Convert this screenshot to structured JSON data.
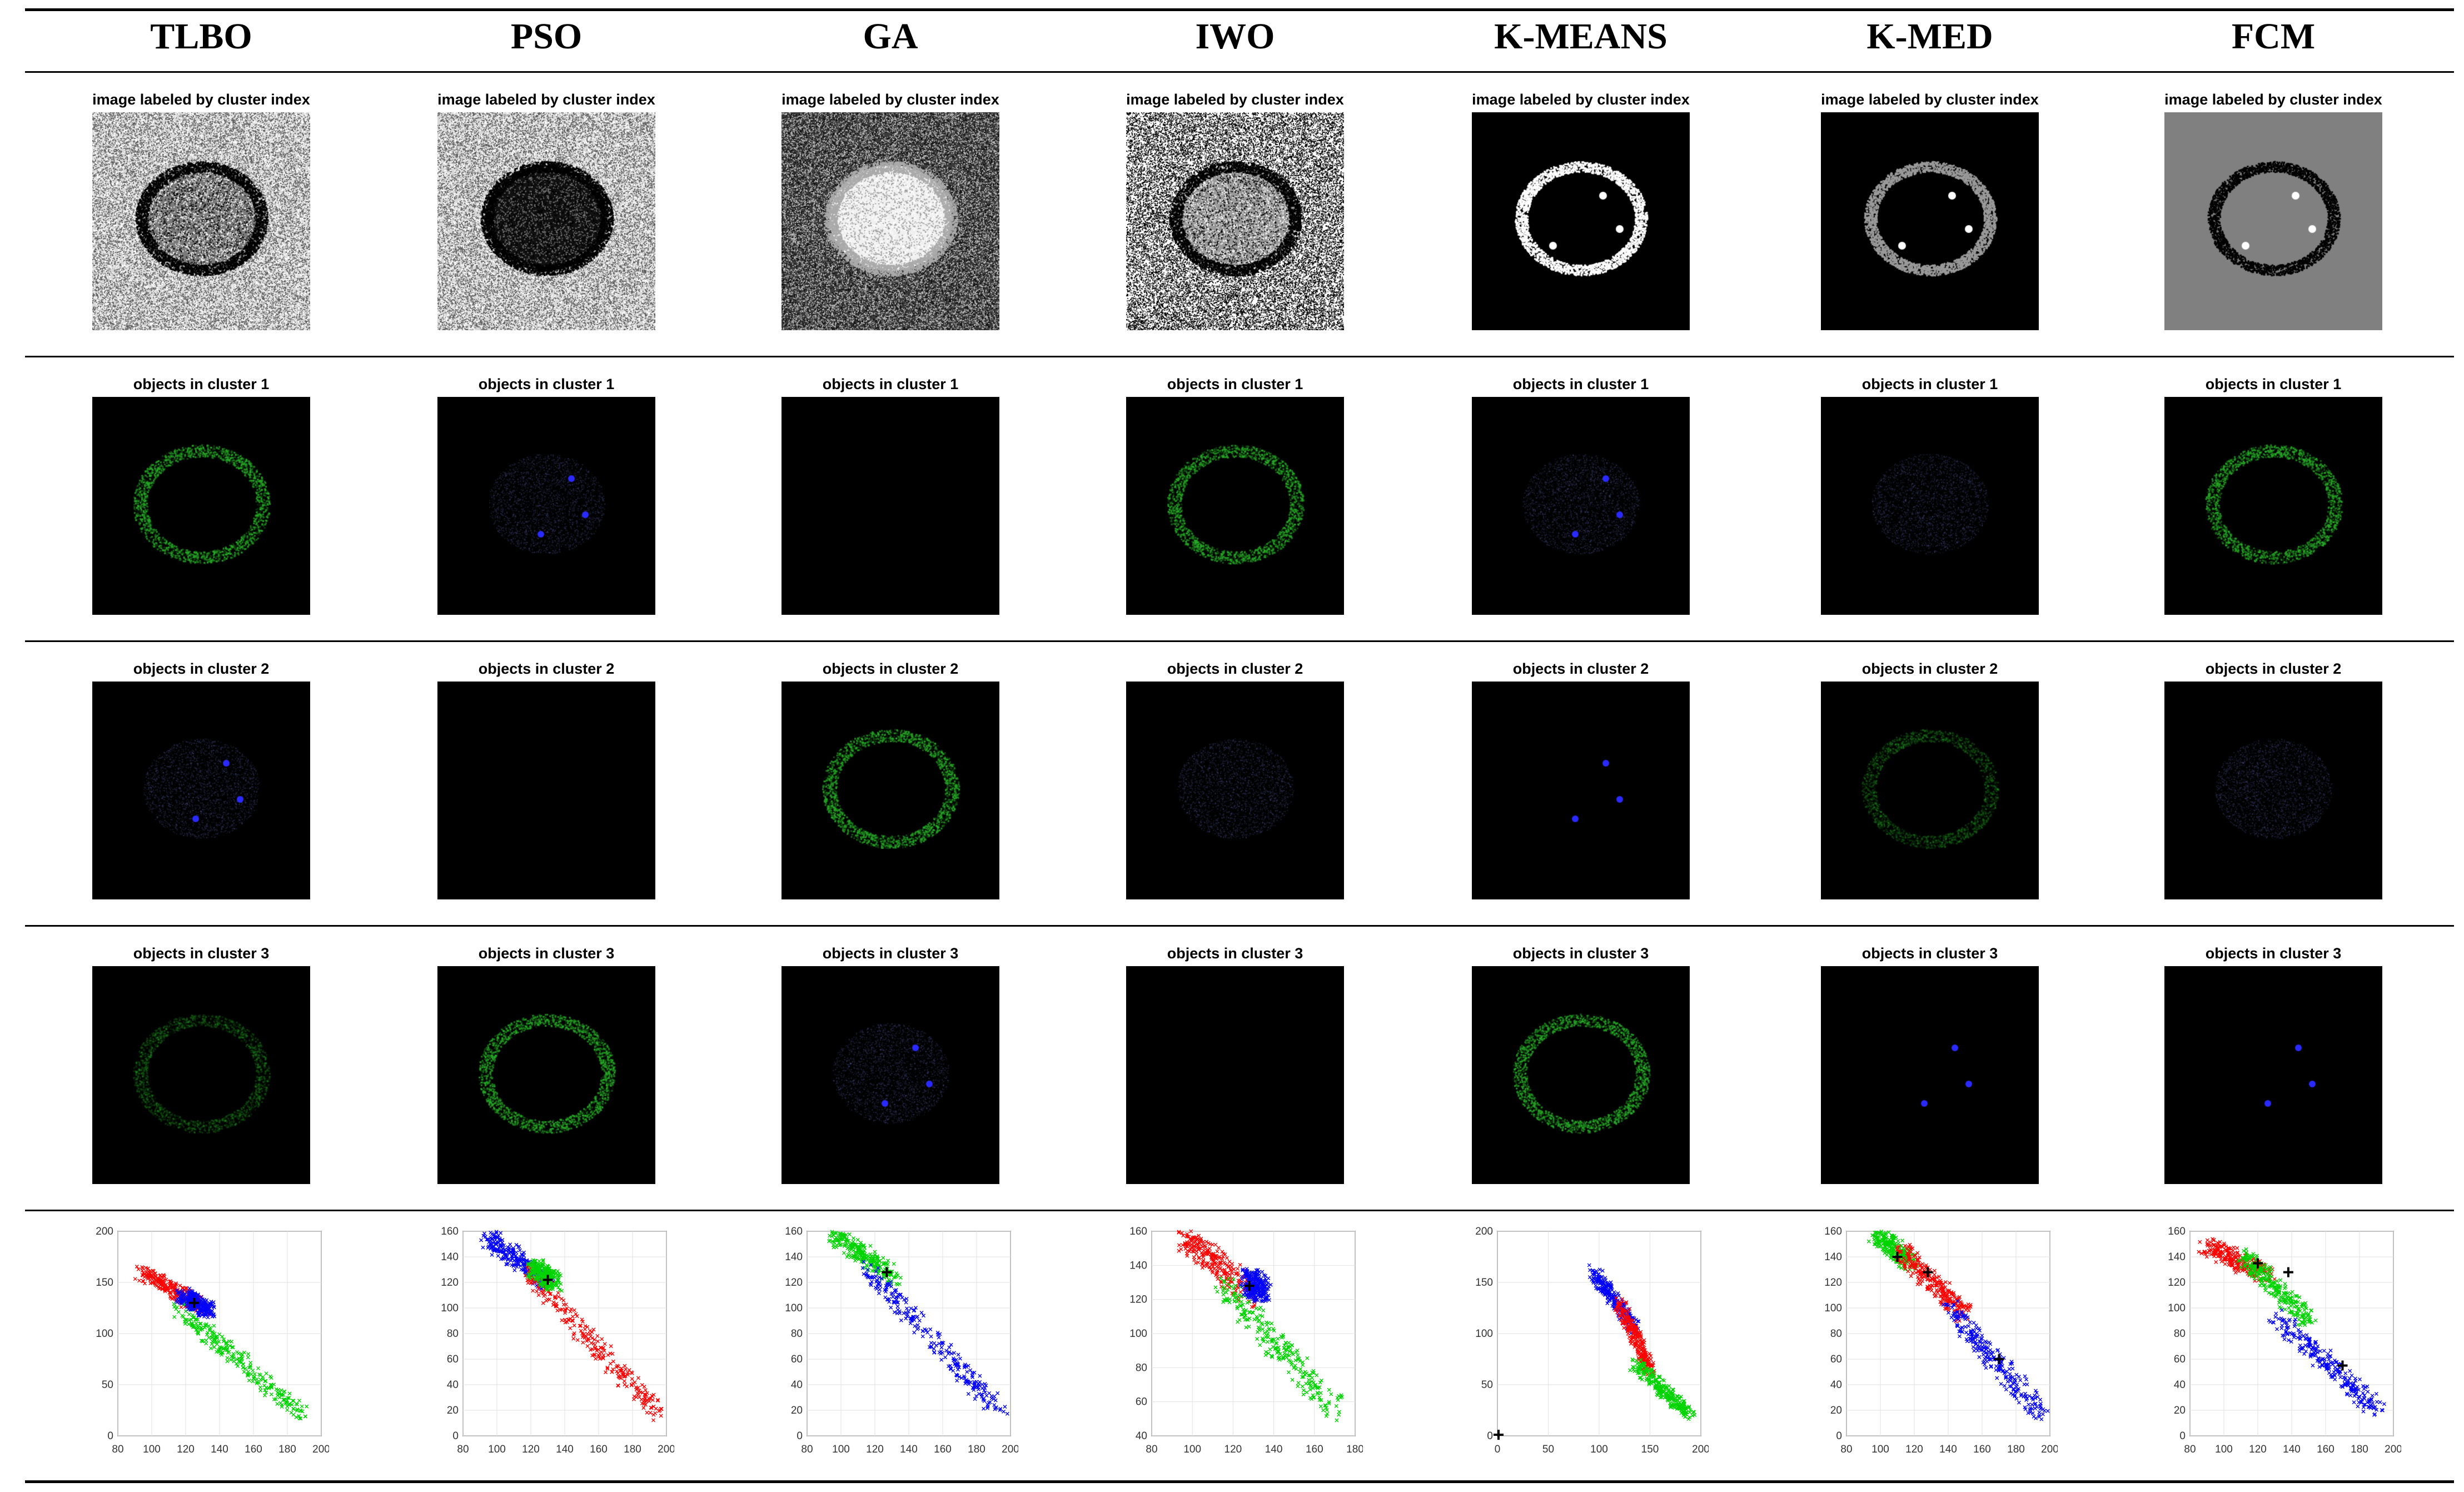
{
  "columns": [
    "TLBO",
    "PSO",
    "GA",
    "IWO",
    "K-MEANS",
    "K-MED",
    "FCM"
  ],
  "captions": {
    "labeled": "image labeled by cluster index",
    "cluster1": "objects in cluster 1",
    "cluster2": "objects in cluster 2",
    "cluster3": "objects in cluster 3"
  },
  "colors": {
    "red": "#ff0000",
    "green": "#00d400",
    "blue": "#0000ff",
    "centroid": "#000000"
  },
  "label_images": [
    {
      "style": "gray-noise",
      "desc_values": [
        "speckle-light",
        "cell-dark"
      ]
    },
    {
      "style": "gray-noise",
      "desc_values": [
        "speckle-light",
        "cell-black"
      ]
    },
    {
      "style": "dark-noise",
      "desc_values": [
        "speckle-dark",
        "cell-white"
      ]
    },
    {
      "style": "bw-noise",
      "desc_values": [
        "speckle-bw",
        "cell-gray"
      ]
    },
    {
      "style": "black-edge",
      "desc_values": [
        "black",
        "ring-white"
      ]
    },
    {
      "style": "black-faint",
      "desc_values": [
        "black",
        "ring-faint"
      ]
    },
    {
      "style": "gray-flat",
      "desc_values": [
        "gray",
        "ring-dark"
      ]
    }
  ],
  "cluster_images": [
    [
      "green-ring",
      "blue-core",
      "faint-green"
    ],
    [
      "blue-core",
      "empty",
      "green-ring"
    ],
    [
      "empty",
      "green-ring",
      "blue-core"
    ],
    [
      "green-ring",
      "blue-faint",
      "empty"
    ],
    [
      "blue-core",
      "blue-dots",
      "green-ring"
    ],
    [
      "blue-faint",
      "green-faint",
      "blue-dots"
    ],
    [
      "green-ring",
      "blue-faint",
      "blue-dots"
    ]
  ],
  "chart_data": [
    {
      "type": "scatter",
      "method": "TLBO",
      "xlim": [
        80,
        200
      ],
      "ylim": [
        0,
        200
      ],
      "xticks": [
        80,
        100,
        120,
        140,
        160,
        180,
        200
      ],
      "yticks": [
        0,
        50,
        100,
        150,
        200
      ],
      "series": [
        {
          "color": "red",
          "start": [
            95,
            160
          ],
          "end": [
            130,
            125
          ]
        },
        {
          "color": "green",
          "start": [
            115,
            125
          ],
          "end": [
            190,
            20
          ]
        },
        {
          "color": "blue",
          "start": [
            118,
            138
          ],
          "end": [
            134,
            122
          ]
        }
      ],
      "centroids": [
        [
          125,
          130
        ]
      ]
    },
    {
      "type": "scatter",
      "method": "PSO",
      "xlim": [
        80,
        200
      ],
      "ylim": [
        0,
        160
      ],
      "xticks": [
        80,
        100,
        120,
        140,
        160,
        180,
        200
      ],
      "yticks": [
        0,
        20,
        40,
        60,
        80,
        100,
        120,
        140,
        160
      ],
      "series": [
        {
          "color": "blue",
          "start": [
            95,
            155
          ],
          "end": [
            130,
            120
          ]
        },
        {
          "color": "red",
          "start": [
            118,
            128
          ],
          "end": [
            195,
            18
          ]
        },
        {
          "color": "green",
          "start": [
            122,
            132
          ],
          "end": [
            134,
            120
          ]
        }
      ],
      "centroids": [
        [
          130,
          122
        ]
      ]
    },
    {
      "type": "scatter",
      "method": "GA",
      "xlim": [
        80,
        200
      ],
      "ylim": [
        0,
        160
      ],
      "xticks": [
        80,
        100,
        120,
        140,
        160,
        180,
        200
      ],
      "yticks": [
        0,
        20,
        40,
        60,
        80,
        100,
        120,
        140,
        160
      ],
      "series": [
        {
          "color": "green",
          "start": [
            95,
            158
          ],
          "end": [
            132,
            124
          ]
        },
        {
          "color": "blue",
          "start": [
            115,
            130
          ],
          "end": [
            195,
            18
          ]
        }
      ],
      "centroids": [
        [
          127,
          128
        ]
      ]
    },
    {
      "type": "scatter",
      "method": "IWO",
      "xlim": [
        80,
        180
      ],
      "ylim": [
        40,
        160
      ],
      "xticks": [
        80,
        100,
        120,
        140,
        160,
        180
      ],
      "yticks": [
        40,
        60,
        80,
        100,
        120,
        140,
        160
      ],
      "series": [
        {
          "color": "red",
          "start": [
            95,
            158
          ],
          "end": [
            130,
            122
          ]
        },
        {
          "color": "green",
          "start": [
            115,
            128
          ],
          "end": [
            170,
            55
          ]
        },
        {
          "color": "blue",
          "start": [
            128,
            132
          ],
          "end": [
            134,
            124
          ]
        }
      ],
      "centroids": [
        [
          128,
          128
        ]
      ]
    },
    {
      "type": "scatter",
      "method": "K-MEANS",
      "xlim": [
        0,
        200
      ],
      "ylim": [
        0,
        200
      ],
      "xticks": [
        0,
        50,
        100,
        150,
        200
      ],
      "yticks": [
        0,
        50,
        100,
        150,
        200
      ],
      "series": [
        {
          "color": "blue",
          "start": [
            95,
            160
          ],
          "end": [
            135,
            105
          ]
        },
        {
          "color": "red",
          "start": [
            120,
            130
          ],
          "end": [
            150,
            65
          ]
        },
        {
          "color": "green",
          "start": [
            135,
            70
          ],
          "end": [
            190,
            20
          ]
        }
      ],
      "centroids": [
        [
          0,
          0
        ]
      ]
    },
    {
      "type": "scatter",
      "method": "K-MED",
      "xlim": [
        80,
        200
      ],
      "ylim": [
        0,
        160
      ],
      "xticks": [
        80,
        100,
        120,
        140,
        160,
        180,
        200
      ],
      "yticks": [
        0,
        20,
        40,
        60,
        80,
        100,
        120,
        140,
        160
      ],
      "series": [
        {
          "color": "green",
          "start": [
            98,
            158
          ],
          "end": [
            118,
            135
          ]
        },
        {
          "color": "red",
          "start": [
            112,
            145
          ],
          "end": [
            150,
            95
          ]
        },
        {
          "color": "blue",
          "start": [
            140,
            100
          ],
          "end": [
            195,
            18
          ]
        }
      ],
      "centroids": [
        [
          110,
          140
        ],
        [
          128,
          128
        ],
        [
          170,
          60
        ]
      ]
    },
    {
      "type": "scatter",
      "method": "FCM",
      "xlim": [
        80,
        200
      ],
      "ylim": [
        0,
        160
      ],
      "xticks": [
        80,
        100,
        120,
        140,
        160,
        180,
        200
      ],
      "yticks": [
        0,
        20,
        40,
        60,
        80,
        100,
        120,
        140,
        160
      ],
      "series": [
        {
          "color": "red",
          "start": [
            90,
            150
          ],
          "end": [
            125,
            125
          ]
        },
        {
          "color": "green",
          "start": [
            112,
            140
          ],
          "end": [
            150,
            90
          ]
        },
        {
          "color": "blue",
          "start": [
            130,
            95
          ],
          "end": [
            190,
            20
          ]
        }
      ],
      "centroids": [
        [
          120,
          135
        ],
        [
          138,
          128
        ],
        [
          170,
          55
        ]
      ]
    }
  ]
}
